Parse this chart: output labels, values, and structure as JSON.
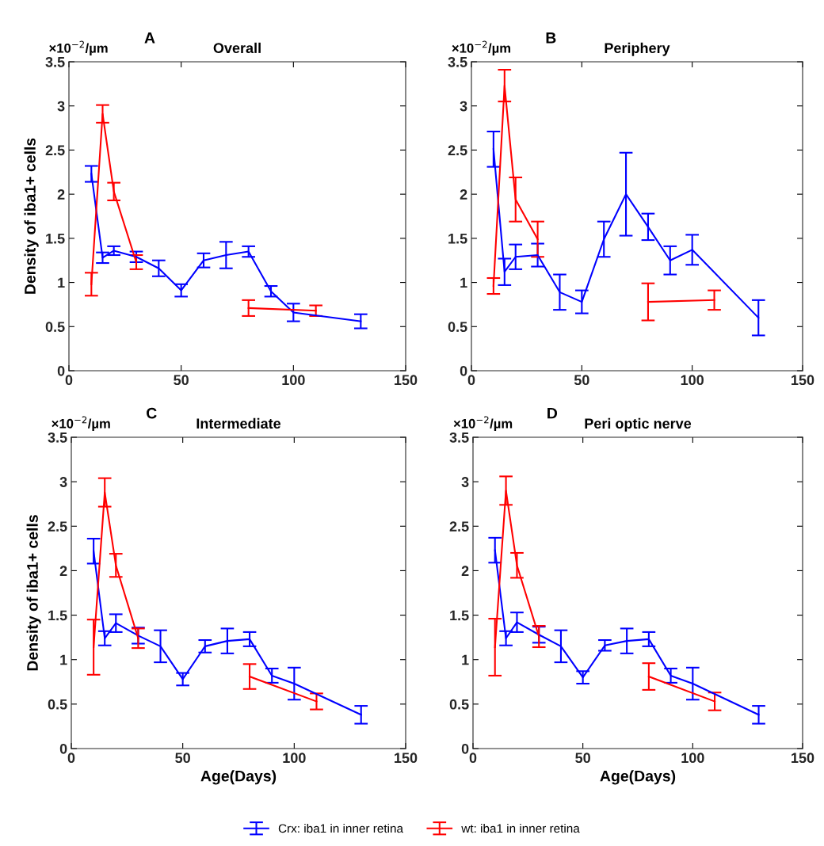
{
  "chart_data": [
    {
      "type": "line",
      "title": "Overall",
      "ylabel": "Density of iba1+ cells",
      "annotations": [
        "A",
        "×10$^{−2}$/µm"
      ],
      "xlim": [
        0,
        150
      ],
      "xticks": [
        0,
        50,
        100,
        150
      ],
      "ylim": [
        0,
        3.5
      ],
      "yticks": [
        0,
        0.5,
        1,
        1.5,
        2,
        2.5,
        3,
        3.5
      ],
      "grid": false,
      "marker": "none",
      "line_style": "solid",
      "series": [
        {
          "color": "#0000ff",
          "x": [
            10,
            15,
            20,
            30,
            40,
            50,
            60,
            70,
            80,
            90,
            100,
            130
          ],
          "values": [
            2.23,
            1.28,
            1.36,
            1.29,
            1.16,
            0.91,
            1.25,
            1.31,
            1.35,
            0.9,
            0.66,
            0.56
          ],
          "errors": [
            0.09,
            0.06,
            0.05,
            0.06,
            0.09,
            0.07,
            0.08,
            0.15,
            0.06,
            0.06,
            0.1,
            0.08
          ]
        },
        {
          "color": "#ff0000",
          "x": [
            10,
            15,
            20,
            30,
            40,
            80,
            110
          ],
          "values": [
            0.98,
            2.91,
            2.03,
            1.23,
            null,
            0.71,
            0.68
          ],
          "errors": [
            0.13,
            0.1,
            0.1,
            0.08,
            null,
            0.09,
            0.06
          ]
        }
      ]
    },
    {
      "type": "line",
      "title": "Periphery",
      "annotations": [
        "B",
        "×10$^{−2}$/µm"
      ],
      "xlim": [
        0,
        150
      ],
      "xticks": [
        0,
        50,
        100,
        150
      ],
      "ylim": [
        0,
        3.5
      ],
      "yticks": [
        0,
        0.5,
        1,
        1.5,
        2,
        2.5,
        3,
        3.5
      ],
      "grid": false,
      "marker": "none",
      "line_style": "solid",
      "series": [
        {
          "color": "#0000ff",
          "x": [
            10,
            15,
            20,
            30,
            40,
            50,
            60,
            70,
            80,
            90,
            100,
            130
          ],
          "values": [
            2.51,
            1.12,
            1.29,
            1.31,
            0.89,
            0.78,
            1.49,
            2.0,
            1.63,
            1.25,
            1.37,
            0.6
          ],
          "errors": [
            0.2,
            0.15,
            0.14,
            0.13,
            0.2,
            0.13,
            0.2,
            0.47,
            0.15,
            0.16,
            0.17,
            0.2
          ]
        },
        {
          "color": "#ff0000",
          "x": [
            10,
            15,
            20,
            30,
            40,
            80,
            110
          ],
          "values": [
            0.96,
            3.23,
            1.94,
            1.49,
            null,
            0.78,
            0.8
          ],
          "errors": [
            0.09,
            0.18,
            0.25,
            0.2,
            null,
            0.21,
            0.11
          ]
        }
      ]
    },
    {
      "type": "line",
      "title": "Intermediate",
      "xlabel": "Age(Days)",
      "ylabel": "Density of iba1+ cells",
      "annotations": [
        "C",
        "×10$^{−2}$/µm"
      ],
      "xlim": [
        0,
        150
      ],
      "xticks": [
        0,
        50,
        100,
        150
      ],
      "ylim": [
        0,
        3.5
      ],
      "yticks": [
        0,
        0.5,
        1,
        1.5,
        2,
        2.5,
        3,
        3.5
      ],
      "grid": false,
      "marker": "none",
      "line_style": "solid",
      "series": [
        {
          "color": "#0000ff",
          "x": [
            10,
            15,
            20,
            30,
            40,
            50,
            60,
            70,
            80,
            90,
            100,
            130
          ],
          "values": [
            2.22,
            1.24,
            1.41,
            1.27,
            1.15,
            0.78,
            1.15,
            1.21,
            1.23,
            0.82,
            0.73,
            0.38
          ],
          "errors": [
            0.14,
            0.08,
            0.1,
            0.09,
            0.18,
            0.07,
            0.07,
            0.14,
            0.08,
            0.08,
            0.18,
            0.1
          ]
        },
        {
          "color": "#ff0000",
          "x": [
            10,
            15,
            20,
            30,
            40,
            80,
            110
          ],
          "values": [
            1.14,
            2.88,
            2.06,
            1.24,
            null,
            0.81,
            0.53
          ],
          "errors": [
            0.31,
            0.16,
            0.13,
            0.11,
            null,
            0.14,
            0.09
          ]
        }
      ]
    },
    {
      "type": "line",
      "title": "Peri optic nerve",
      "xlabel": "Age(Days)",
      "annotations": [
        "D",
        "×10$^{−2}$/µm"
      ],
      "xlim": [
        0,
        150
      ],
      "xticks": [
        0,
        50,
        100,
        150
      ],
      "ylim": [
        0,
        3.5
      ],
      "yticks": [
        0,
        0.5,
        1,
        1.5,
        2,
        2.5,
        3,
        3.5
      ],
      "grid": false,
      "marker": "none",
      "line_style": "solid",
      "legend": "bottom",
      "series": [
        {
          "name": "Crx: iba1 in inner retina",
          "color": "#0000ff",
          "x": [
            10,
            15,
            20,
            30,
            40,
            50,
            60,
            70,
            80,
            90,
            100,
            130
          ],
          "values": [
            2.23,
            1.24,
            1.42,
            1.28,
            1.15,
            0.8,
            1.16,
            1.21,
            1.23,
            0.82,
            0.73,
            0.38
          ],
          "errors": [
            0.14,
            0.08,
            0.11,
            0.09,
            0.18,
            0.07,
            0.06,
            0.14,
            0.08,
            0.08,
            0.18,
            0.1
          ]
        },
        {
          "name": "wt: iba1 in inner retina",
          "color": "#ff0000",
          "x": [
            10,
            15,
            20,
            30,
            40,
            80,
            110
          ],
          "values": [
            1.14,
            2.9,
            2.06,
            1.26,
            null,
            0.81,
            0.53
          ],
          "errors": [
            0.32,
            0.16,
            0.14,
            0.12,
            null,
            0.15,
            0.1
          ]
        }
      ]
    }
  ]
}
